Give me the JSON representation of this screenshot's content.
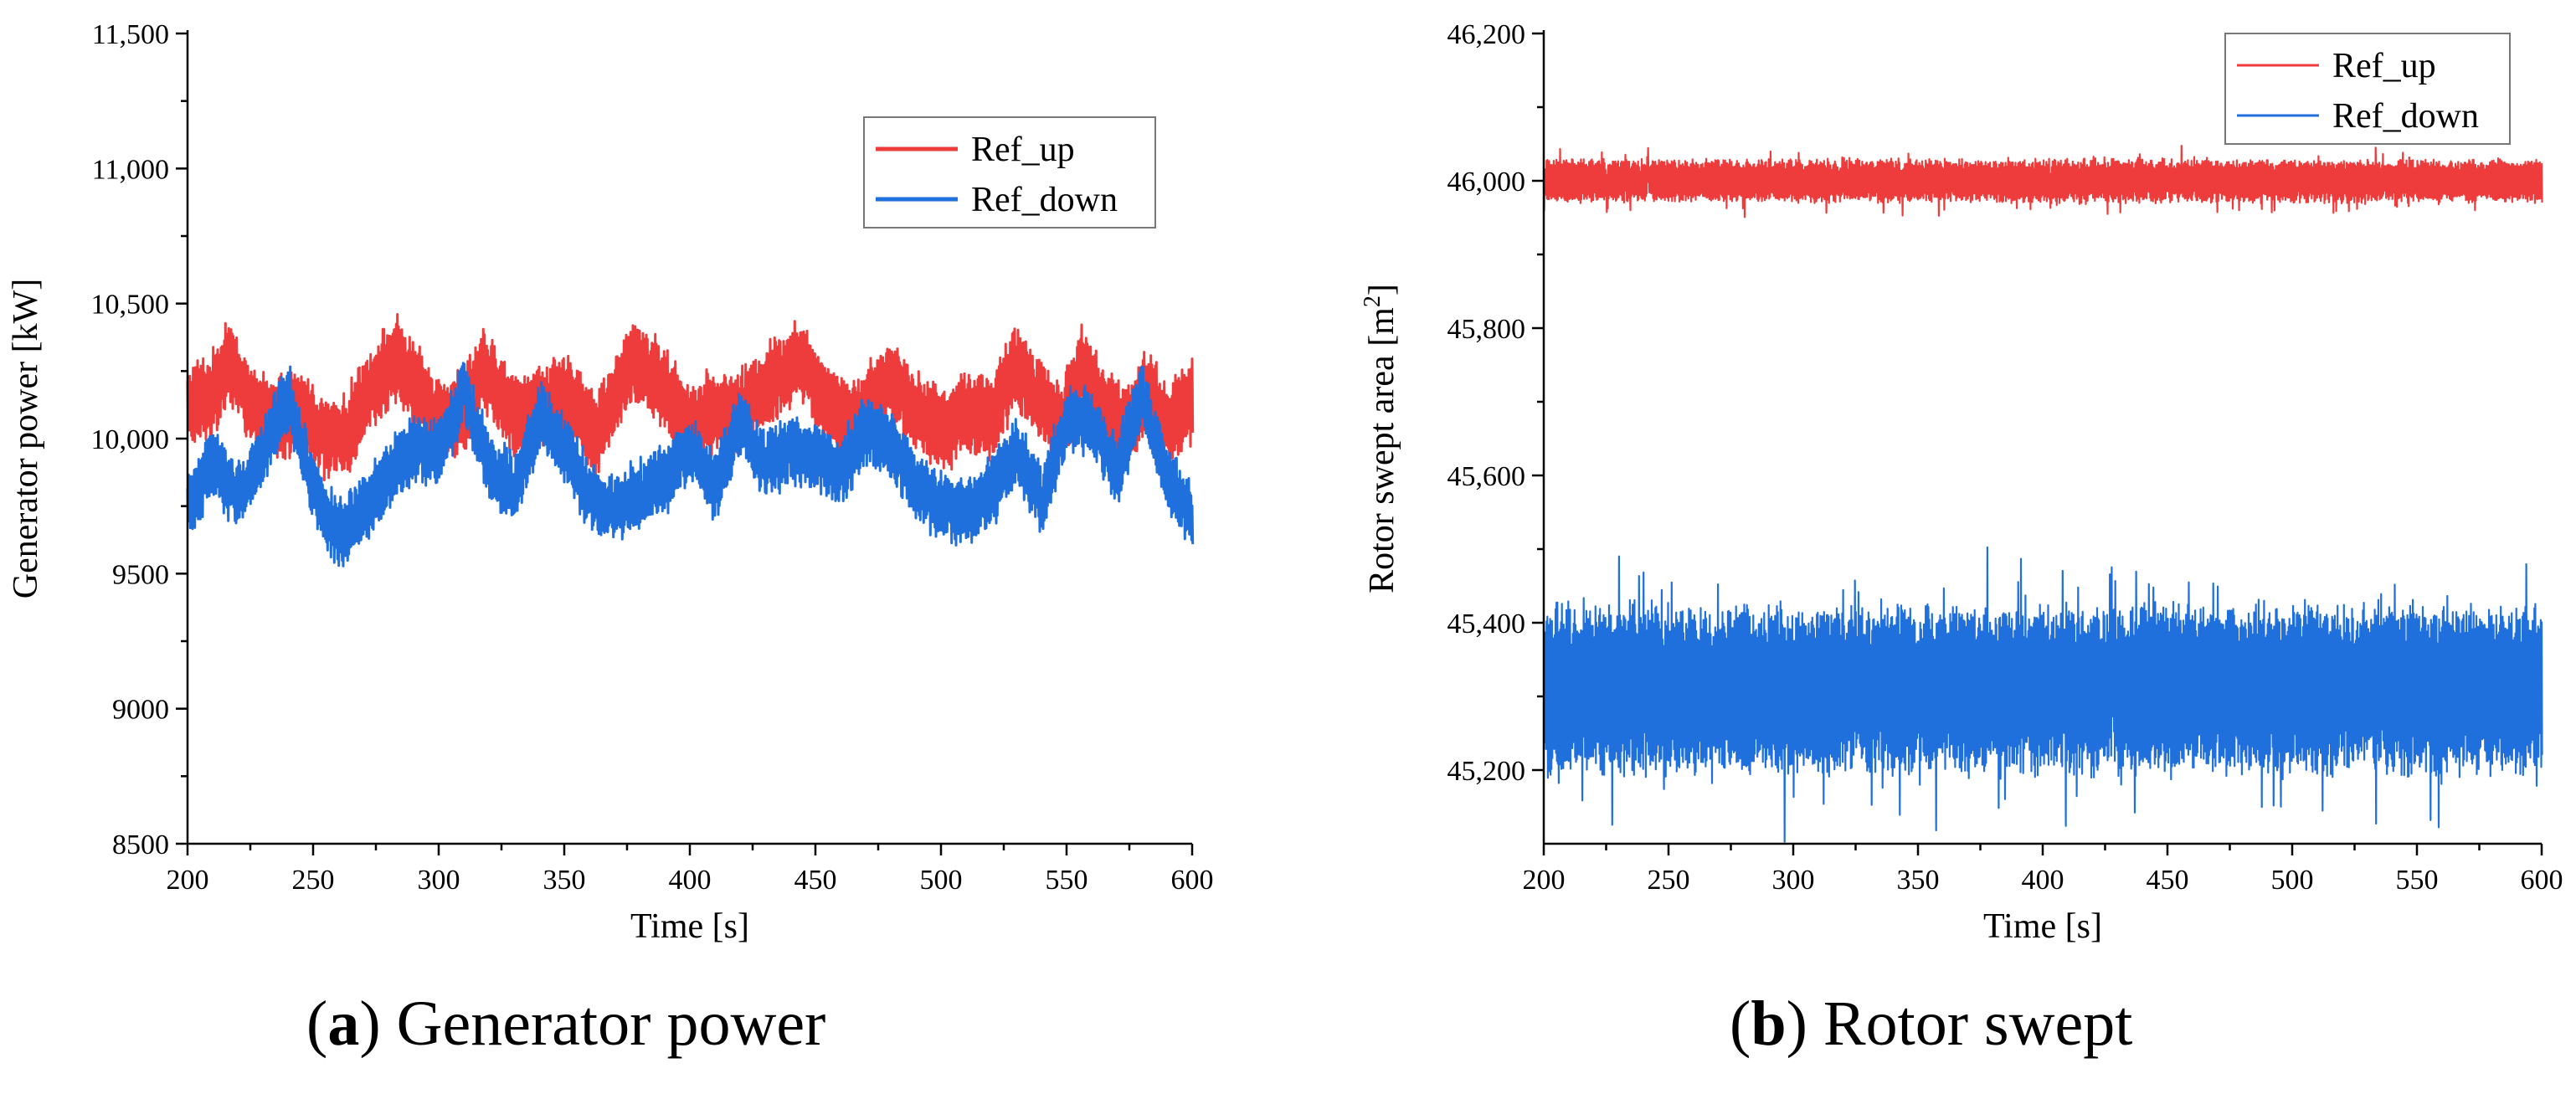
{
  "chart_data": [
    {
      "type": "line",
      "id": "a",
      "caption_letter": "a",
      "caption_text": "Generator power",
      "xlabel": "Time [s]",
      "ylabel": "Generator power [kW]",
      "xlim": [
        200,
        600
      ],
      "ylim": [
        8500,
        11500
      ],
      "xticks": [
        200,
        250,
        300,
        350,
        400,
        450,
        500,
        550,
        600
      ],
      "xtick_labels": [
        "200",
        "250",
        "300",
        "350",
        "400",
        "450",
        "500",
        "550",
        "600"
      ],
      "yticks": [
        8500,
        9000,
        9500,
        10000,
        10500,
        11000,
        11500
      ],
      "ytick_labels": [
        "8500",
        "9000",
        "9500",
        "10,000",
        "10,500",
        "11,000",
        "11,500"
      ],
      "legend": {
        "position": "top-right",
        "entries": [
          "Ref_up",
          "Ref_down"
        ]
      },
      "series": [
        {
          "name": "Ref_up",
          "color": "#ee3b3b",
          "x": [
            200,
            210,
            216,
            225,
            235,
            245,
            255,
            262,
            270,
            283,
            292,
            300,
            310,
            318,
            330,
            345,
            355,
            362,
            378,
            390,
            400,
            410,
            418,
            430,
            443,
            455,
            465,
            470,
            480,
            490,
            500,
            510,
            520,
            530,
            540,
            548,
            556,
            565,
            575,
            582,
            590,
            600
          ],
          "values": [
            10110,
            10160,
            10300,
            10120,
            10060,
            10100,
            10000,
            9990,
            10150,
            10300,
            10170,
            10080,
            10110,
            10250,
            10080,
            10140,
            10140,
            10000,
            10300,
            10180,
            10050,
            10100,
            10080,
            10190,
            10300,
            10130,
            10060,
            10110,
            10220,
            10100,
            10030,
            10100,
            10080,
            10270,
            10140,
            10050,
            10270,
            10100,
            10060,
            10190,
            10040,
            10150
          ],
          "band": 140
        },
        {
          "name": "Ref_down",
          "color": "#1f6fdc",
          "x": [
            200,
            210,
            220,
            230,
            240,
            250,
            260,
            270,
            280,
            290,
            300,
            310,
            320,
            330,
            340,
            350,
            360,
            370,
            380,
            390,
            400,
            410,
            420,
            430,
            440,
            450,
            460,
            470,
            480,
            490,
            500,
            510,
            520,
            530,
            540,
            550,
            560,
            570,
            580,
            590,
            600
          ],
          "values": [
            9740,
            9920,
            9780,
            9950,
            10160,
            9820,
            9640,
            9720,
            9860,
            9960,
            9940,
            10180,
            9900,
            9820,
            10080,
            9960,
            9780,
            9740,
            9800,
            9850,
            9960,
            9820,
            10060,
            9900,
            9960,
            9940,
            9880,
            10040,
            9980,
            9820,
            9750,
            9720,
            9800,
            9950,
            9760,
            10060,
            10060,
            9870,
            10170,
            9840,
            9700
          ],
          "band": 110
        }
      ]
    },
    {
      "type": "line",
      "id": "b",
      "caption_letter": "b",
      "caption_text": "Rotor swept",
      "xlabel": "Time [s]",
      "ylabel": "Rotor swept area [m",
      "ylabel_sup": "2",
      "ylabel_end": "]",
      "xlim": [
        200,
        600
      ],
      "ylim": [
        45100,
        46200
      ],
      "xticks": [
        200,
        250,
        300,
        350,
        400,
        450,
        500,
        550,
        600
      ],
      "xtick_labels": [
        "200",
        "250",
        "300",
        "350",
        "400",
        "450",
        "500",
        "550",
        "600"
      ],
      "yticks": [
        45200,
        45400,
        45600,
        45800,
        46000,
        46200
      ],
      "ytick_labels": [
        "45,200",
        "45,400",
        "45,600",
        "45,800",
        "46,000",
        "46,200"
      ],
      "legend": {
        "position": "top-right",
        "entries": [
          "Ref_up",
          "Ref_down"
        ]
      },
      "series": [
        {
          "name": "Ref_up",
          "color": "#ee3b3b",
          "mean": 46000,
          "band": 28
        },
        {
          "name": "Ref_down",
          "color": "#1f6fdc",
          "mean": 45310,
          "band": 110
        }
      ]
    }
  ]
}
